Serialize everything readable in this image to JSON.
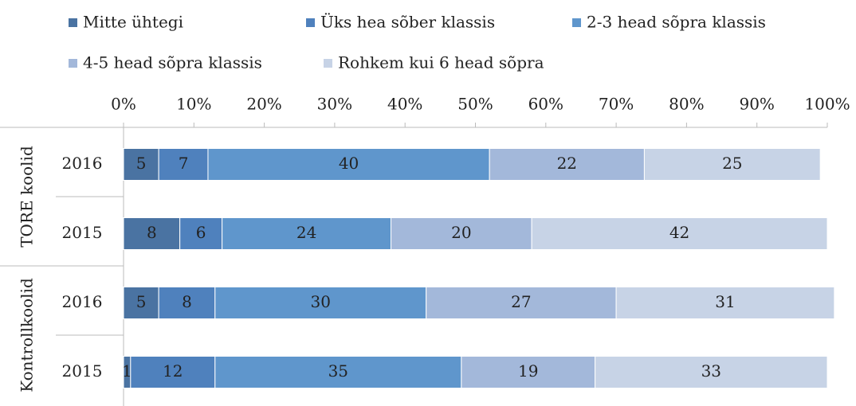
{
  "chart_data": {
    "type": "stacked-bar-horizontal",
    "groups": [
      {
        "name": "TORE koolid",
        "categories": [
          "2016",
          "2015"
        ]
      },
      {
        "name": "Kontrollkoolid",
        "categories": [
          "2016",
          "2015"
        ]
      }
    ],
    "series": [
      {
        "name": "Mitte ühtegi",
        "color": "#4a73a2",
        "values": [
          5,
          8,
          5,
          1
        ]
      },
      {
        "name": "Üks hea sõber klassis",
        "color": "#4f81bd",
        "values": [
          7,
          6,
          8,
          12
        ]
      },
      {
        "name": "2-3 head sõpra klassis",
        "color": "#5f96cc",
        "values": [
          40,
          24,
          30,
          35
        ]
      },
      {
        "name": "4-5 head sõpra klassis",
        "color": "#a3b8da",
        "values": [
          22,
          20,
          27,
          19
        ]
      },
      {
        "name": "Rohkem kui 6 head sõpra",
        "color": "#c7d3e6",
        "values": [
          25,
          42,
          31,
          33
        ]
      }
    ],
    "xlim": [
      0,
      100
    ],
    "xticks": [
      {
        "value": 0,
        "label": "0%"
      },
      {
        "value": 10,
        "label": "10%"
      },
      {
        "value": 20,
        "label": "20%"
      },
      {
        "value": 30,
        "label": "30%"
      },
      {
        "value": 40,
        "label": "40%"
      },
      {
        "value": 50,
        "label": "50%"
      },
      {
        "value": 60,
        "label": "60%"
      },
      {
        "value": 70,
        "label": "70%"
      },
      {
        "value": 80,
        "label": "80%"
      },
      {
        "value": 90,
        "label": "90%"
      },
      {
        "value": 100,
        "label": "100%"
      }
    ]
  }
}
